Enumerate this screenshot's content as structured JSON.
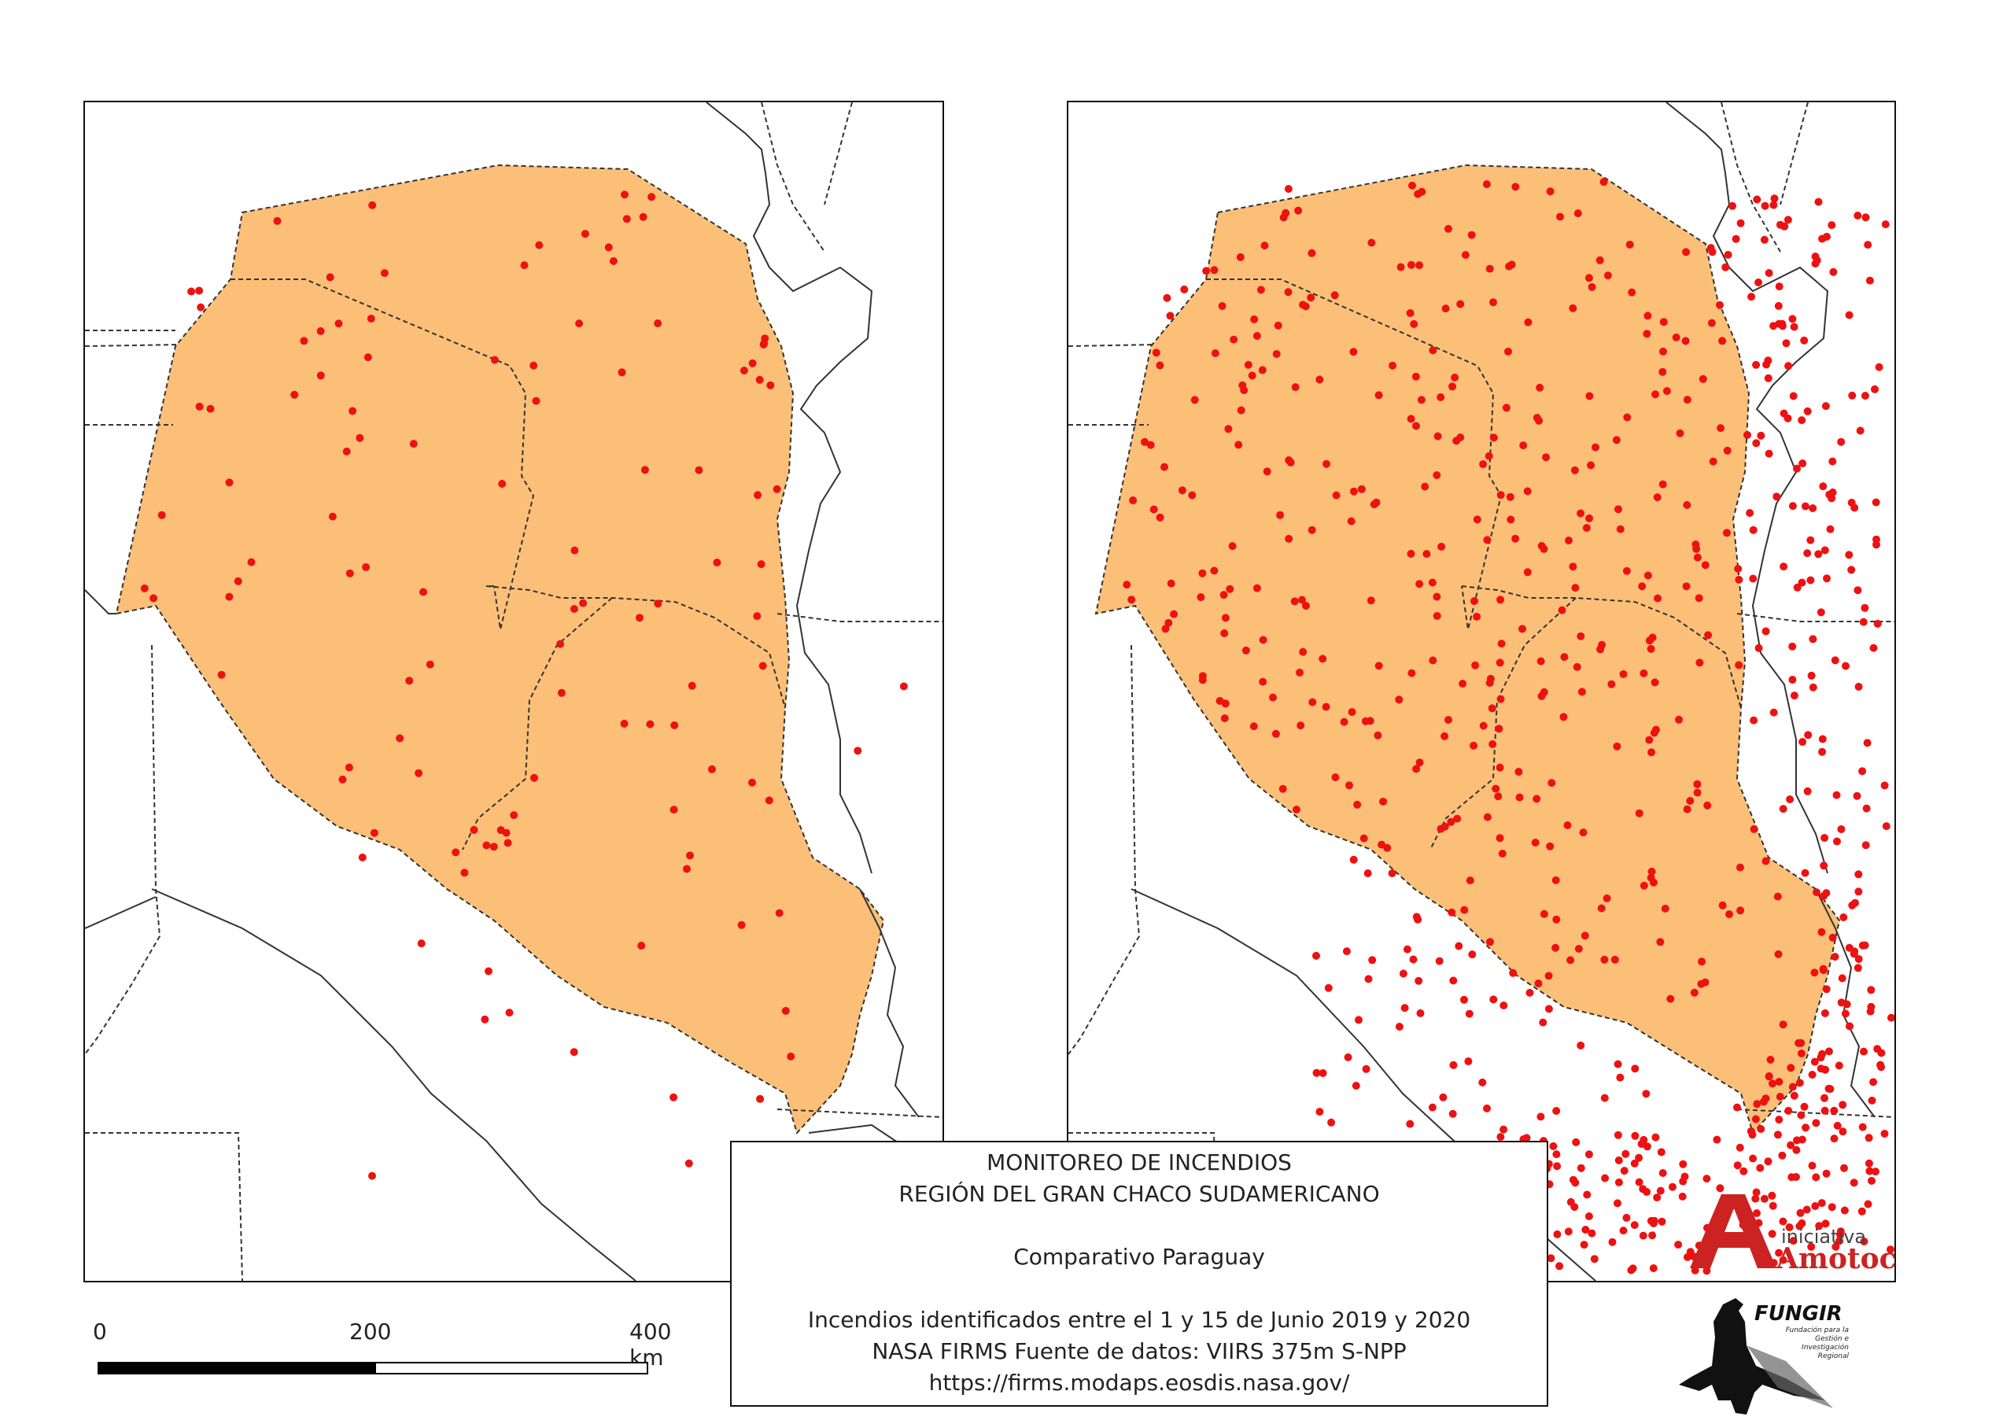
{
  "scale_bar": {
    "labels": [
      "0",
      "200",
      "400 km"
    ]
  },
  "legend": {
    "title_line1": "MONITOREO DE INCENDIOS",
    "title_line2": "REGIÓN DEL GRAN CHACO SUDAMERICANO",
    "subtitle": "Comparativo Paraguay",
    "description": "Incendios identificados entre el 1 y 15 de Junio 2019 y 2020",
    "source": "NASA FIRMS Fuente de datos: VIIRS 375m S-NPP",
    "url": "https://firms.modaps.eosdis.nasa.gov/"
  },
  "logos": {
    "amotocodie": {
      "word_small": "iniciativa",
      "word_big": "Amotocodie"
    },
    "fungir": {
      "name": "FUNGIR",
      "tagline": "Fundación para la Gestión e Investigación Regional"
    }
  },
  "colors": {
    "region_fill": "#fbbf78",
    "fire_point": "#ee1111",
    "border_line": "#222222",
    "logo_red": "#cc2222"
  },
  "maps": [
    {
      "id": "june-2019",
      "fire_density": "low"
    },
    {
      "id": "june-2020",
      "fire_density": "high"
    }
  ]
}
